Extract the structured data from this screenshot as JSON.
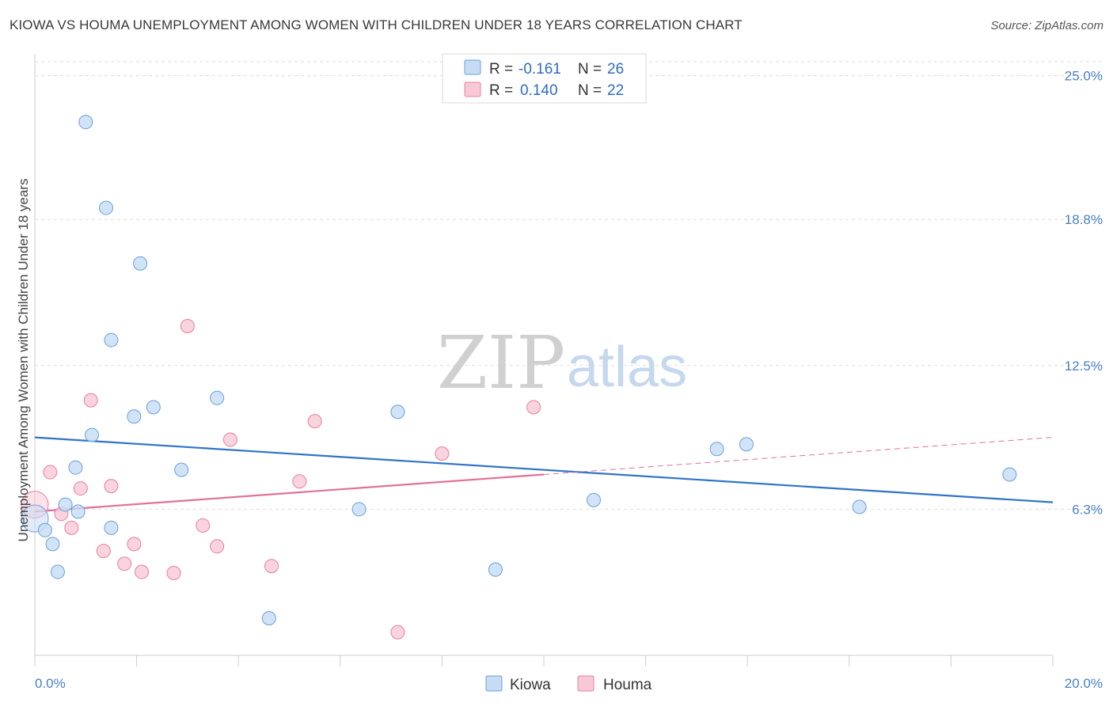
{
  "title": "KIOWA VS HOUMA UNEMPLOYMENT AMONG WOMEN WITH CHILDREN UNDER 18 YEARS CORRELATION CHART",
  "source": "Source: ZipAtlas.com",
  "watermark": {
    "zip": "ZIP",
    "atlas": "atlas"
  },
  "colors": {
    "kiowa": "#6a9fdb",
    "kiowa_fill": "#c6dcf5",
    "houma": "#e87fa0",
    "houma_fill": "#f8c8d6",
    "kiowa_line": "#2f74c8",
    "houma_line": "#e07099",
    "grid": "#dddddd",
    "axis_text": "#4a7fc8"
  },
  "legend": {
    "rows": [
      {
        "series": "kiowa",
        "r_label": "R =",
        "r_value": "-0.161",
        "n_label": "N =",
        "n_value": "26"
      },
      {
        "series": "houma",
        "r_label": "R =",
        "r_value": "0.140",
        "n_label": "N =",
        "n_value": "22"
      }
    ]
  },
  "bottom_legend": [
    {
      "series": "kiowa",
      "label": "Kiowa"
    },
    {
      "series": "houma",
      "label": "Houma"
    }
  ],
  "chart_data": {
    "type": "scatter",
    "title": "KIOWA VS HOUMA UNEMPLOYMENT AMONG WOMEN WITH CHILDREN UNDER 18 YEARS CORRELATION CHART",
    "xlabel": "",
    "ylabel": "Unemployment Among Women with Children Under 18 years",
    "xlim": [
      0,
      20
    ],
    "ylim": [
      0,
      25.6
    ],
    "x_tick_labels": [
      {
        "value": 0,
        "label": "0.0%"
      },
      {
        "value": 20,
        "label": "20.0%"
      }
    ],
    "y_tick_labels": [
      {
        "value": 25.0,
        "label": "25.0%"
      },
      {
        "value": 18.8,
        "label": "18.8%"
      },
      {
        "value": 12.5,
        "label": "12.5%"
      },
      {
        "value": 6.3,
        "label": "6.3%"
      }
    ],
    "x_minor_ticks": [
      0,
      2,
      4,
      6,
      8,
      10,
      12,
      14,
      16,
      18,
      20
    ],
    "series": [
      {
        "name": "Kiowa",
        "r": -0.161,
        "n": 26,
        "points": [
          {
            "x": 0.0,
            "y": 5.9,
            "big": true
          },
          {
            "x": 0.2,
            "y": 5.4
          },
          {
            "x": 0.35,
            "y": 4.8
          },
          {
            "x": 0.45,
            "y": 3.6
          },
          {
            "x": 0.6,
            "y": 6.5
          },
          {
            "x": 0.8,
            "y": 8.1
          },
          {
            "x": 0.85,
            "y": 6.2
          },
          {
            "x": 1.0,
            "y": 23.0
          },
          {
            "x": 1.12,
            "y": 9.5
          },
          {
            "x": 1.4,
            "y": 19.3
          },
          {
            "x": 1.5,
            "y": 13.6
          },
          {
            "x": 1.5,
            "y": 5.5
          },
          {
            "x": 1.95,
            "y": 10.3
          },
          {
            "x": 2.07,
            "y": 16.9
          },
          {
            "x": 2.33,
            "y": 10.7
          },
          {
            "x": 2.88,
            "y": 8.0
          },
          {
            "x": 3.58,
            "y": 11.1
          },
          {
            "x": 4.6,
            "y": 1.6
          },
          {
            "x": 6.37,
            "y": 6.3
          },
          {
            "x": 7.13,
            "y": 10.5
          },
          {
            "x": 9.05,
            "y": 3.7
          },
          {
            "x": 10.98,
            "y": 6.7
          },
          {
            "x": 13.4,
            "y": 8.9
          },
          {
            "x": 13.98,
            "y": 9.1
          },
          {
            "x": 16.2,
            "y": 6.4
          },
          {
            "x": 19.15,
            "y": 7.8
          }
        ],
        "trend": {
          "x0": 0,
          "y0": 9.4,
          "x1": 20,
          "y1": 6.6
        }
      },
      {
        "name": "Houma",
        "r": 0.14,
        "n": 22,
        "points": [
          {
            "x": 0.0,
            "y": 6.5,
            "big": true
          },
          {
            "x": 0.3,
            "y": 7.9
          },
          {
            "x": 0.52,
            "y": 6.1
          },
          {
            "x": 0.72,
            "y": 5.5
          },
          {
            "x": 0.9,
            "y": 7.2
          },
          {
            "x": 1.1,
            "y": 11.0
          },
          {
            "x": 1.35,
            "y": 4.5
          },
          {
            "x": 1.5,
            "y": 7.3
          },
          {
            "x": 1.76,
            "y": 3.95
          },
          {
            "x": 1.95,
            "y": 4.8
          },
          {
            "x": 2.1,
            "y": 3.6
          },
          {
            "x": 2.73,
            "y": 3.55
          },
          {
            "x": 3.0,
            "y": 14.2
          },
          {
            "x": 3.3,
            "y": 5.6
          },
          {
            "x": 3.58,
            "y": 4.7
          },
          {
            "x": 3.84,
            "y": 9.3
          },
          {
            "x": 4.65,
            "y": 3.85
          },
          {
            "x": 5.2,
            "y": 7.5
          },
          {
            "x": 5.5,
            "y": 10.1
          },
          {
            "x": 7.13,
            "y": 1.0
          },
          {
            "x": 8.0,
            "y": 8.7
          },
          {
            "x": 9.8,
            "y": 10.7
          }
        ],
        "trend": {
          "x0": 0,
          "y0": 6.2,
          "x1": 10,
          "y1": 7.8
        },
        "trend_dashed": {
          "x0": 10,
          "y0": 7.8,
          "x1": 20,
          "y1": 9.4
        }
      }
    ]
  }
}
